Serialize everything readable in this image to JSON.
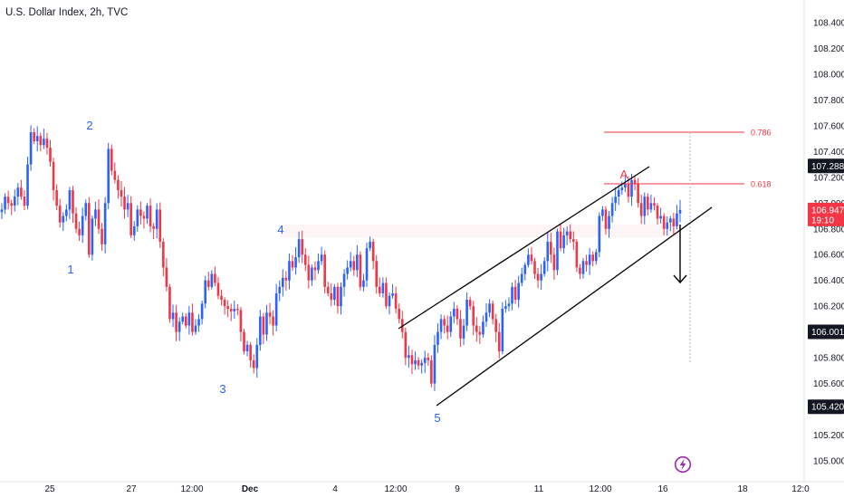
{
  "title": "U.S. Dollar Index, 2h, TVC",
  "colors": {
    "up": "#2962ff",
    "down": "#f23645",
    "wave": "#2962ff",
    "fib": "#f23645",
    "channel": "#000000",
    "bolt": "#9c27b0"
  },
  "icons": [
    "lightning-bolt-icon"
  ],
  "chart_data": {
    "type": "candlestick",
    "title": "U.S. Dollar Index, 2h, TVC",
    "ylim": [
      104.9,
      108.5
    ],
    "y_ticks": [
      "108.400",
      "108.200",
      "108.000",
      "107.800",
      "107.600",
      "107.400",
      "107.200",
      "107.000",
      "106.800",
      "106.600",
      "106.400",
      "106.200",
      "106.000",
      "105.800",
      "105.600",
      "105.400",
      "105.200",
      "105.000"
    ],
    "x_ticks": [
      "25",
      "27",
      "12:00",
      "Dec",
      "4",
      "12:00",
      "9",
      "11",
      "12:00",
      "16",
      "18",
      "12:0"
    ],
    "price_labels": [
      {
        "value": "107.288",
        "style": "dark"
      },
      {
        "value": "106.947",
        "sub": "19:10",
        "style": "red"
      },
      {
        "value": "106.001",
        "style": "dark"
      },
      {
        "value": "105.420",
        "style": "dark"
      }
    ],
    "fib_levels": [
      {
        "label": "0.786",
        "value": 107.55
      },
      {
        "label": "0.618",
        "value": 107.15
      }
    ],
    "wave_labels": [
      {
        "label": "1",
        "price": 106.63
      },
      {
        "label": "2",
        "price": 107.48
      },
      {
        "label": "3",
        "price": 105.67
      },
      {
        "label": "4",
        "price": 106.82
      },
      {
        "label": "5",
        "price": 105.42
      },
      {
        "label": "A",
        "price": 107.17
      }
    ],
    "channel_upper": [
      [
        106.12
      ],
      [
        107.28
      ]
    ],
    "channel_lower": [
      [
        105.43
      ],
      [
        106.99
      ]
    ],
    "closes": [
      106.95,
      107.05,
      107.0,
      106.98,
      107.05,
      107.12,
      107.05,
      106.98,
      107.3,
      107.55,
      107.48,
      107.52,
      107.45,
      107.5,
      107.43,
      107.32,
      107.1,
      106.98,
      106.85,
      106.9,
      106.95,
      107.1,
      106.92,
      106.8,
      106.75,
      106.9,
      107.0,
      106.6,
      106.88,
      106.95,
      106.8,
      106.68,
      107.0,
      107.42,
      107.25,
      107.18,
      107.1,
      107.05,
      106.95,
      107.0,
      106.75,
      106.82,
      106.95,
      106.9,
      106.88,
      106.98,
      106.82,
      106.8,
      106.95,
      106.7,
      106.5,
      106.35,
      106.1,
      106.15,
      106.0,
      106.08,
      106.12,
      106.05,
      106.15,
      106.0,
      106.05,
      106.1,
      106.22,
      106.4,
      106.35,
      106.45,
      106.38,
      106.28,
      106.25,
      106.2,
      106.18,
      106.16,
      106.18,
      106.17,
      106.0,
      105.85,
      105.9,
      105.78,
      105.72,
      105.9,
      106.12,
      105.98,
      106.15,
      106.12,
      106.05,
      106.3,
      106.35,
      106.42,
      106.4,
      106.55,
      106.5,
      106.58,
      106.72,
      106.6,
      106.52,
      106.4,
      106.5,
      106.48,
      106.55,
      106.6,
      106.35,
      106.3,
      106.25,
      106.35,
      106.2,
      106.35,
      106.45,
      106.5,
      106.55,
      106.48,
      106.6,
      106.35,
      106.4,
      106.65,
      106.7,
      106.55,
      106.35,
      106.3,
      106.38,
      106.2,
      106.28,
      106.3,
      106.18,
      106.1,
      106.0,
      105.8,
      105.82,
      105.75,
      105.78,
      105.74,
      105.76,
      105.8,
      105.78,
      105.6,
      105.9,
      106.0,
      106.1,
      106.05,
      106.0,
      106.12,
      106.18,
      106.1,
      105.95,
      106.05,
      106.25,
      106.2,
      106.05,
      106.0,
      105.98,
      106.08,
      106.15,
      106.22,
      106.1,
      106.0,
      105.85,
      106.18,
      106.2,
      106.22,
      106.35,
      106.25,
      106.38,
      106.45,
      106.52,
      106.6,
      106.55,
      106.45,
      106.4,
      106.45,
      106.55,
      106.7,
      106.6,
      106.48,
      106.78,
      106.65,
      106.75,
      106.78,
      106.72,
      106.7,
      106.5,
      106.45,
      106.55,
      106.52,
      106.6,
      106.55,
      106.62,
      106.9,
      106.95,
      106.8,
      106.9,
      107.0,
      107.05,
      107.1,
      107.12,
      107.15,
      107.05,
      107.18,
      107.15,
      107.0,
      106.9,
      107.05,
      106.95,
      107.0,
      106.98,
      106.88,
      106.9,
      106.8,
      106.85,
      106.88,
      106.82,
      106.92,
      106.947
    ]
  }
}
